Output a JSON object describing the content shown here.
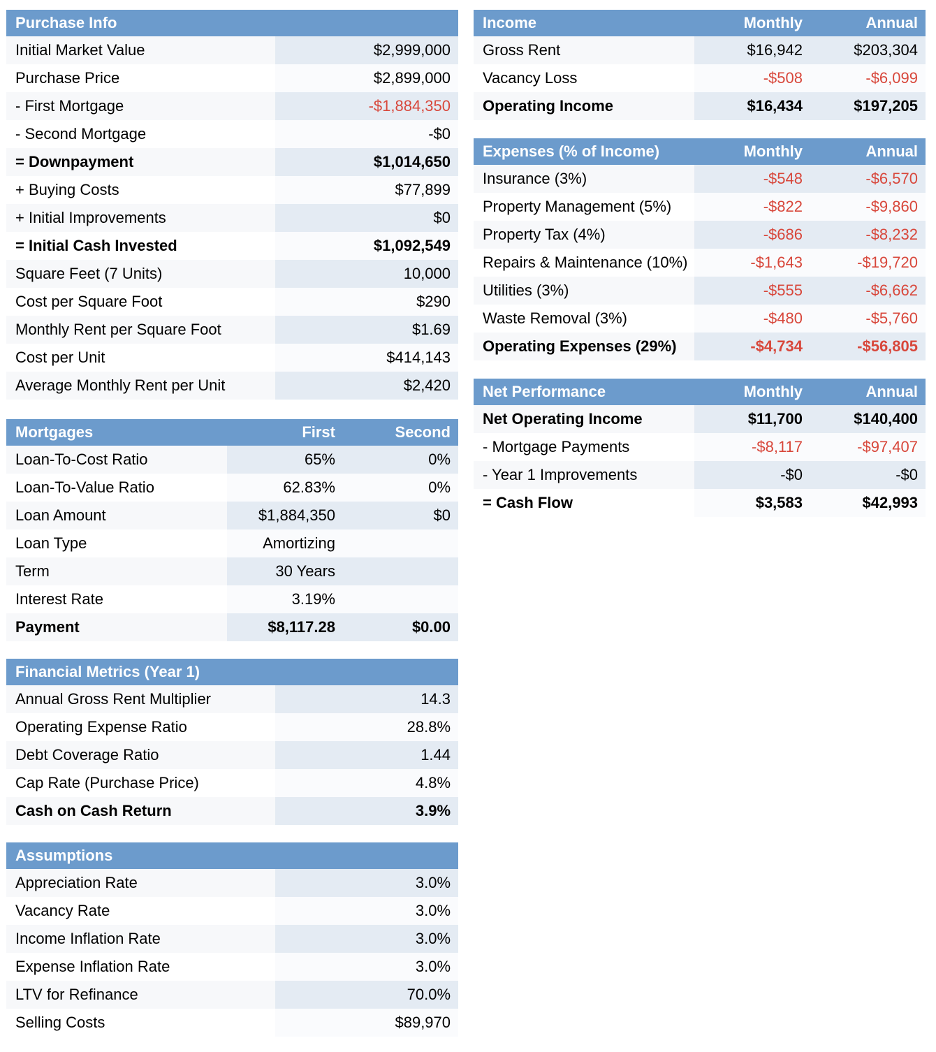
{
  "colors": {
    "header_bg": "#6c9bcc",
    "header_text": "#ffffff",
    "negative": "#d8473b",
    "value_band": "#e4ebf3"
  },
  "purchase_info": {
    "title": "Purchase Info",
    "rows": [
      {
        "label": "Initial Market Value",
        "value": "$2,999,000"
      },
      {
        "label": "Purchase Price",
        "value": "$2,899,000"
      },
      {
        "label": "- First Mortgage",
        "value": "-$1,884,350",
        "negative": true
      },
      {
        "label": "- Second Mortgage",
        "value": "-$0"
      },
      {
        "label": "= Downpayment",
        "value": "$1,014,650",
        "bold": true
      },
      {
        "label": "+ Buying Costs",
        "value": "$77,899"
      },
      {
        "label": "+ Initial Improvements",
        "value": "$0"
      },
      {
        "label": "= Initial Cash Invested",
        "value": "$1,092,549",
        "bold": true
      },
      {
        "label": "Square Feet (7 Units)",
        "value": "10,000"
      },
      {
        "label": "Cost per Square Foot",
        "value": "$290"
      },
      {
        "label": "Monthly Rent per Square Foot",
        "value": "$1.69"
      },
      {
        "label": "Cost per Unit",
        "value": "$414,143"
      },
      {
        "label": "Average Monthly Rent per Unit",
        "value": "$2,420"
      }
    ]
  },
  "mortgages": {
    "title": "Mortgages",
    "col1": "First",
    "col2": "Second",
    "rows": [
      {
        "label": "Loan-To-Cost Ratio",
        "v1": "65%",
        "v2": "0%"
      },
      {
        "label": "Loan-To-Value Ratio",
        "v1": "62.83%",
        "v2": "0%"
      },
      {
        "label": "Loan Amount",
        "v1": "$1,884,350",
        "v2": "$0"
      },
      {
        "label": "Loan Type",
        "v1": "Amortizing",
        "v2": ""
      },
      {
        "label": "Term",
        "v1": "30 Years",
        "v2": ""
      },
      {
        "label": "Interest Rate",
        "v1": "3.19%",
        "v2": ""
      },
      {
        "label": "Payment",
        "v1": "$8,117.28",
        "v2": "$0.00",
        "bold": true
      }
    ]
  },
  "financial_metrics": {
    "title": "Financial Metrics (Year 1)",
    "rows": [
      {
        "label": "Annual Gross Rent Multiplier",
        "value": "14.3"
      },
      {
        "label": "Operating Expense Ratio",
        "value": "28.8%"
      },
      {
        "label": "Debt Coverage Ratio",
        "value": "1.44"
      },
      {
        "label": "Cap Rate (Purchase Price)",
        "value": "4.8%"
      },
      {
        "label": "Cash on Cash Return",
        "value": "3.9%",
        "bold": true
      }
    ]
  },
  "assumptions": {
    "title": "Assumptions",
    "rows": [
      {
        "label": "Appreciation Rate",
        "value": "3.0%"
      },
      {
        "label": "Vacancy Rate",
        "value": "3.0%"
      },
      {
        "label": "Income Inflation Rate",
        "value": "3.0%"
      },
      {
        "label": "Expense Inflation Rate",
        "value": "3.0%"
      },
      {
        "label": "LTV for Refinance",
        "value": "70.0%"
      },
      {
        "label": "Selling Costs",
        "value": "$89,970"
      }
    ]
  },
  "income": {
    "title": "Income",
    "col1": "Monthly",
    "col2": "Annual",
    "rows": [
      {
        "label": "Gross Rent",
        "v1": "$16,942",
        "v2": "$203,304"
      },
      {
        "label": "Vacancy Loss",
        "v1": "-$508",
        "v2": "-$6,099",
        "negative": true
      },
      {
        "label": "Operating Income",
        "v1": "$16,434",
        "v2": "$197,205",
        "bold": true
      }
    ]
  },
  "expenses": {
    "title": "Expenses (% of Income)",
    "col1": "Monthly",
    "col2": "Annual",
    "rows": [
      {
        "label": "Insurance (3%)",
        "v1": "-$548",
        "v2": "-$6,570",
        "negative": true
      },
      {
        "label": "Property Management (5%)",
        "v1": "-$822",
        "v2": "-$9,860",
        "negative": true
      },
      {
        "label": "Property Tax (4%)",
        "v1": "-$686",
        "v2": "-$8,232",
        "negative": true
      },
      {
        "label": "Repairs & Maintenance (10%)",
        "v1": "-$1,643",
        "v2": "-$19,720",
        "negative": true
      },
      {
        "label": "Utilities (3%)",
        "v1": "-$555",
        "v2": "-$6,662",
        "negative": true
      },
      {
        "label": "Waste Removal (3%)",
        "v1": "-$480",
        "v2": "-$5,760",
        "negative": true
      },
      {
        "label": "Operating Expenses (29%)",
        "v1": "-$4,734",
        "v2": "-$56,805",
        "negative": true,
        "bold": true
      }
    ]
  },
  "net_performance": {
    "title": "Net Performance",
    "col1": "Monthly",
    "col2": "Annual",
    "rows": [
      {
        "label": "Net Operating Income",
        "v1": "$11,700",
        "v2": "$140,400",
        "bold": true
      },
      {
        "label": "- Mortgage Payments",
        "v1": "-$8,117",
        "v2": "-$97,407",
        "negative": true
      },
      {
        "label": "- Year 1 Improvements",
        "v1": "-$0",
        "v2": "-$0"
      },
      {
        "label": "= Cash Flow",
        "v1": "$3,583",
        "v2": "$42,993",
        "bold": true
      }
    ]
  }
}
